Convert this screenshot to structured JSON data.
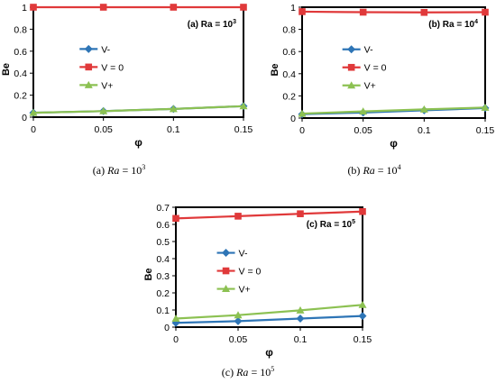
{
  "captions": [
    {
      "letter": "(a)",
      "var": "Ra",
      "eq": " = 10",
      "exp": "3"
    },
    {
      "letter": "(b)",
      "var": "Ra",
      "eq": " = 10",
      "exp": "4"
    },
    {
      "letter": "(c)",
      "var": "Ra",
      "eq": " = 10",
      "exp": "5"
    }
  ],
  "colors": {
    "v_minus": "#2E75B6",
    "v_zero": "#E0393A",
    "v_plus": "#8CC152"
  },
  "chart_data": [
    {
      "type": "line",
      "annotation": "(a) Ra = 10",
      "annotation_exp": "3",
      "xlabel": "φ",
      "ylabel": "Be",
      "x": [
        0,
        0.05,
        0.1,
        0.15
      ],
      "x_ticks": [
        "0",
        "0.05",
        "0.1",
        "0.15"
      ],
      "y_ticks": [
        "0",
        "0.2",
        "0.4",
        "0.6",
        "0.8",
        "1"
      ],
      "ylim": [
        0,
        1
      ],
      "legend_position": "center-left",
      "series": [
        {
          "name": "V-",
          "marker": "diamond",
          "values": [
            0.04,
            0.055,
            0.075,
            0.1
          ]
        },
        {
          "name": "V = 0",
          "marker": "square",
          "values": [
            1.0,
            1.0,
            1.0,
            1.0
          ]
        },
        {
          "name": "V+",
          "marker": "triangle",
          "values": [
            0.04,
            0.055,
            0.075,
            0.1
          ]
        }
      ]
    },
    {
      "type": "line",
      "annotation": "(b) Ra = 10",
      "annotation_exp": "4",
      "xlabel": "φ",
      "ylabel": "Be",
      "x": [
        0,
        0.05,
        0.1,
        0.15
      ],
      "x_ticks": [
        "0",
        "0.05",
        "0.1",
        "0.15"
      ],
      "y_ticks": [
        "0",
        "0.2",
        "0.4",
        "0.6",
        "0.8",
        "1"
      ],
      "ylim": [
        0,
        1
      ],
      "legend_position": "center-left",
      "series": [
        {
          "name": "V-",
          "marker": "diamond",
          "values": [
            0.035,
            0.05,
            0.07,
            0.09
          ]
        },
        {
          "name": "V = 0",
          "marker": "square",
          "values": [
            0.96,
            0.955,
            0.953,
            0.955
          ]
        },
        {
          "name": "V+",
          "marker": "triangle",
          "values": [
            0.04,
            0.06,
            0.078,
            0.095
          ]
        }
      ]
    },
    {
      "type": "line",
      "annotation": "(c) Ra = 10",
      "annotation_exp": "5",
      "xlabel": "φ",
      "ylabel": "Be",
      "x": [
        0,
        0.05,
        0.1,
        0.15
      ],
      "x_ticks": [
        "0",
        "0.05",
        "0.1",
        "0.15"
      ],
      "y_ticks": [
        "0",
        "0.1",
        "0.2",
        "0.3",
        "0.4",
        "0.5",
        "0.6",
        "0.7"
      ],
      "ylim": [
        0,
        0.7
      ],
      "legend_position": "center-left",
      "series": [
        {
          "name": "V-",
          "marker": "diamond",
          "values": [
            0.025,
            0.035,
            0.05,
            0.065
          ]
        },
        {
          "name": "V = 0",
          "marker": "square",
          "values": [
            0.635,
            0.648,
            0.662,
            0.675
          ]
        },
        {
          "name": "V+",
          "marker": "triangle",
          "values": [
            0.05,
            0.07,
            0.098,
            0.13
          ]
        }
      ]
    }
  ]
}
